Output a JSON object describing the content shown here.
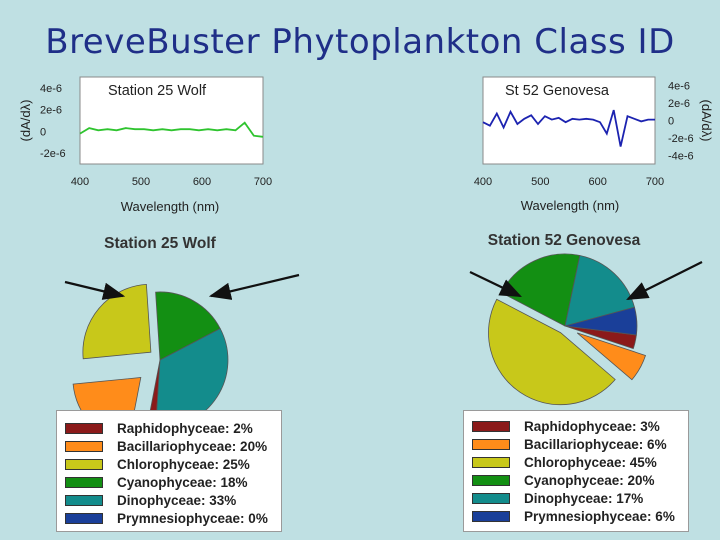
{
  "slide": {
    "title": "BreveBuster Phytoplankton Class ID"
  },
  "chart_data": [
    {
      "type": "line",
      "title": "Station 25 Wolf",
      "xlabel": "Wavelength (nm)",
      "ylabel": "(dA/dλ)",
      "x_ticks": [
        "400",
        "500",
        "600",
        "700"
      ],
      "y_ticks": [
        "4e-6",
        "2e-6",
        "0",
        "-2e-6"
      ],
      "xlim": [
        400,
        700
      ],
      "ylim": [
        -3e-06,
        5e-06
      ],
      "line_color": "#2fc42f",
      "series": [
        {
          "x": [
            400,
            415,
            430,
            445,
            460,
            475,
            490,
            505,
            520,
            535,
            550,
            565,
            580,
            595,
            610,
            625,
            640,
            655,
            670,
            685,
            700
          ],
          "values": [
            -2e-07,
            3e-07,
            1e-07,
            2e-07,
            1e-07,
            3e-07,
            2e-07,
            2e-07,
            1e-07,
            2e-07,
            1e-07,
            2e-07,
            2e-07,
            1e-07,
            2e-07,
            1e-07,
            2e-07,
            1e-07,
            8e-07,
            -4e-07,
            -5e-07
          ]
        }
      ]
    },
    {
      "type": "line",
      "title": "St 52 Genovesa",
      "xlabel": "Wavelength (nm)",
      "ylabel": "(dA/dλ)",
      "x_ticks": [
        "400",
        "500",
        "600",
        "700"
      ],
      "y_ticks": [
        "4e-6",
        "2e-6",
        "0",
        "-2e-6",
        "-4e-6"
      ],
      "xlim": [
        400,
        700
      ],
      "ylim": [
        -5e-06,
        5e-06
      ],
      "line_color": "#1c23b0",
      "series": [
        {
          "x": [
            400,
            412,
            424,
            436,
            448,
            460,
            472,
            484,
            496,
            508,
            520,
            532,
            544,
            556,
            568,
            580,
            592,
            604,
            616,
            628,
            640,
            652,
            664,
            676,
            688,
            700
          ],
          "values": [
            -2e-07,
            -6e-07,
            8e-07,
            -8e-07,
            1e-06,
            -4e-07,
            2e-07,
            6e-07,
            -4e-07,
            5e-07,
            1e-07,
            3e-07,
            -2e-07,
            2e-07,
            1e-07,
            2e-07,
            1e-07,
            -2e-07,
            -1.5e-06,
            1.2e-06,
            -3e-06,
            5e-07,
            2e-07,
            -1e-07,
            1e-07,
            1e-07
          ]
        }
      ]
    },
    {
      "type": "pie",
      "title": "Station 25 Wolf",
      "categories": [
        "Raphidophyceae",
        "Bacillariophyceae",
        "Chlorophyceae",
        "Cyanophyceae",
        "Dinophyceae",
        "Prymnesiophyceae"
      ],
      "values": [
        2,
        20,
        25,
        18,
        33,
        0
      ],
      "colors": [
        "#8b1a1a",
        "#ff8c1a",
        "#c8c81a",
        "#138f13",
        "#138c8c",
        "#1a3f99"
      ],
      "exploded": [
        "Bacillariophyceae",
        "Chlorophyceae"
      ],
      "legend": [
        "Raphidophyceae: 2%",
        "Bacillariophyceae: 20%",
        "Chlorophyceae: 25%",
        "Cyanophyceae: 18%",
        "Dinophyceae: 33%",
        "Prymnesiophyceae: 0%"
      ]
    },
    {
      "type": "pie",
      "title": "Station 52 Genovesa",
      "categories": [
        "Raphidophyceae",
        "Bacillariophyceae",
        "Chlorophyceae",
        "Cyanophyceae",
        "Dinophyceae",
        "Prymnesiophyceae"
      ],
      "values": [
        3,
        6,
        45,
        20,
        17,
        6
      ],
      "colors": [
        "#8b1a1a",
        "#ff8c1a",
        "#c8c81a",
        "#138f13",
        "#138c8c",
        "#1a3f99"
      ],
      "exploded": [
        "Bacillariophyceae",
        "Chlorophyceae"
      ],
      "legend": [
        "Raphidophyceae: 3%",
        "Bacillariophyceae: 6%",
        "Chlorophyceae: 45%",
        "Cyanophyceae: 20%",
        "Dinophyceae: 17%",
        "Prymnesiophyceae: 6%"
      ]
    }
  ]
}
